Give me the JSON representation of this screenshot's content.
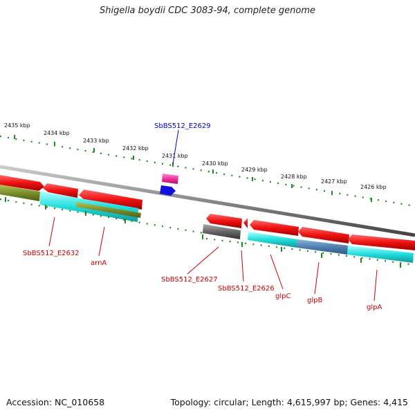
{
  "title": "Shigella boydii CDC 3083-94, complete genome",
  "footer": {
    "accession": "Accession: NC_010658",
    "topology": "Topology: circular; Length: 4,615,997 bp; Genes: 4,415"
  },
  "ruler_labels": [
    "2435 kbp",
    "2434 kbp",
    "2433 kbp",
    "2432 kbp",
    "2431 kbp",
    "2430 kbp",
    "2429 kbp",
    "2428 kbp",
    "2427 kbp",
    "2426 kbp"
  ],
  "gene_labels": {
    "e2629": "SbBS512_E2629",
    "e2632": "SbBS512_E2632",
    "arnA": "arnA",
    "e2627": "SbBS512_E2627",
    "e2626": "SbBS512_E2626",
    "glpC": "glpC",
    "glpB": "glpB",
    "glpA": "glpA"
  },
  "colors": {
    "cds": "#ee1111",
    "cog_cyan": "#22dddd",
    "cog_olive": "#7a8f2a",
    "cog_blue": "#4f7fb0",
    "cog_gray": "#666666",
    "trna_pink": "#ee3399",
    "blue_feature": "#1111dd",
    "ticks": "#1a8a1a",
    "label_red": "#cc0000",
    "label_blue": "#0000cc"
  }
}
